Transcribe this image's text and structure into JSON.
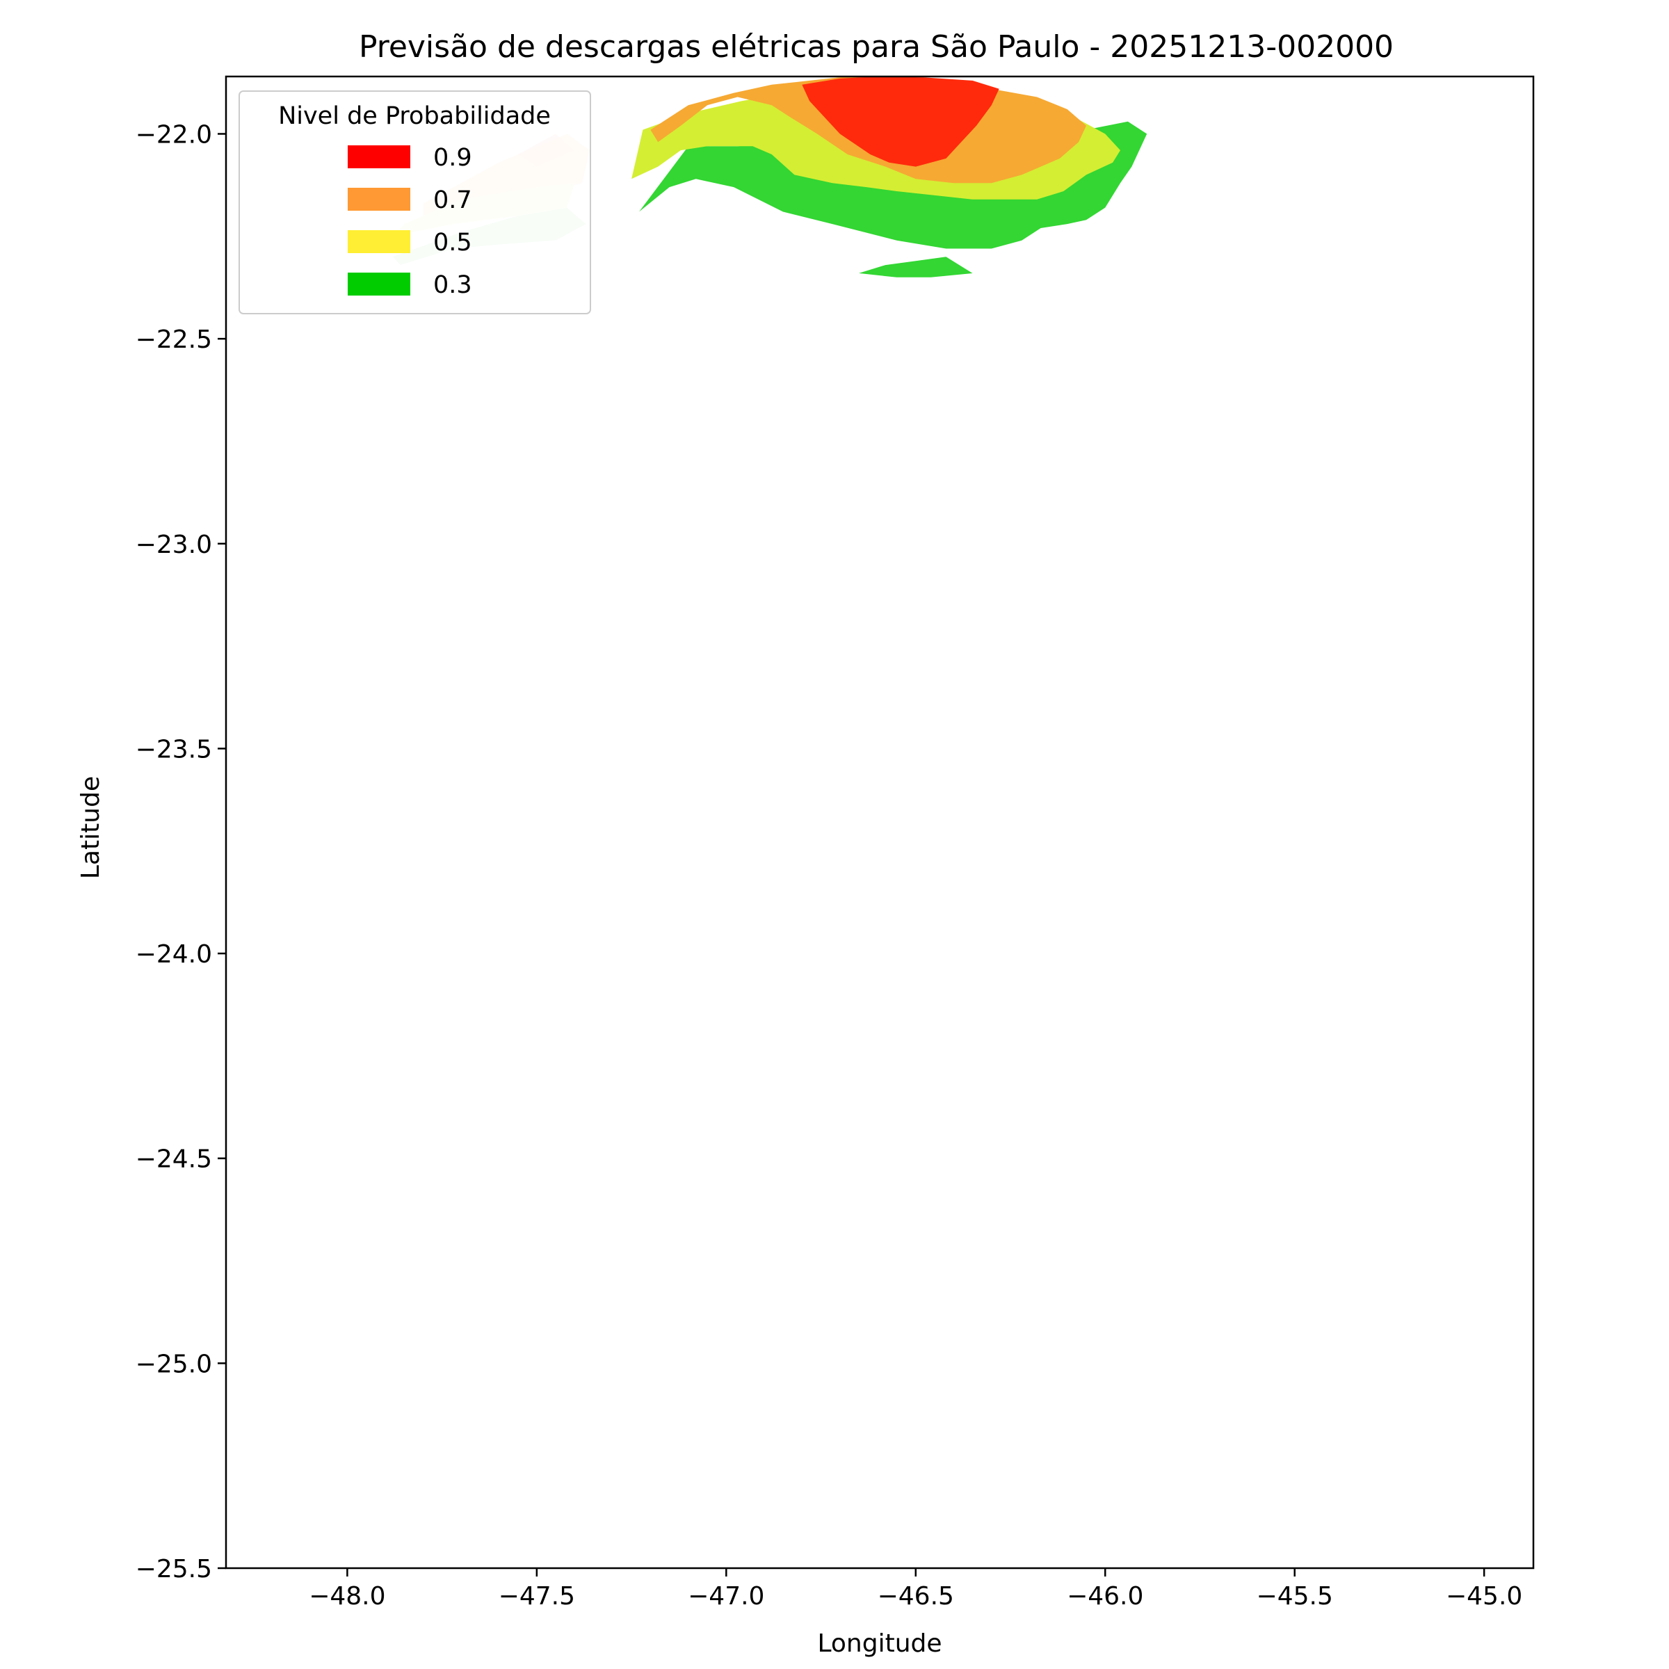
{
  "chart_data": {
    "type": "filled-contour",
    "title": "Previsão de descargas elétricas para São Paulo - 20251213-002000",
    "xlabel": "Longitude",
    "ylabel": "Latitude",
    "xlim": [
      -48.32,
      -44.87
    ],
    "ylim": [
      -25.5,
      -21.86
    ],
    "x_ticks": [
      -48.0,
      -47.5,
      -47.0,
      -46.5,
      -46.0,
      -45.5,
      -45.0
    ],
    "x_tick_labels": [
      "−48.0",
      "−47.5",
      "−47.0",
      "−46.5",
      "−46.0",
      "−45.5",
      "−45.0"
    ],
    "y_ticks": [
      -22.0,
      -22.5,
      -23.0,
      -23.5,
      -24.0,
      -24.5,
      -25.0,
      -25.5
    ],
    "y_tick_labels": [
      "−22.0",
      "−22.5",
      "−23.0",
      "−23.5",
      "−24.0",
      "−24.5",
      "−25.0",
      "−25.5"
    ],
    "grid": false,
    "legend": {
      "title": "Nivel de Probabilidade",
      "placement": "top-left",
      "entries": [
        {
          "label": "0.9",
          "color": "#ff0000"
        },
        {
          "label": "0.7",
          "color": "#ff9933"
        },
        {
          "label": "0.5",
          "color": "#ffee33"
        },
        {
          "label": "0.3",
          "color": "#00cc00"
        }
      ]
    },
    "series": [
      {
        "level": "0.3",
        "color": "#33d633",
        "lon": [
          -47.1,
          -46.97,
          -46.81,
          -46.6,
          -46.4,
          -46.2,
          -46.05,
          -45.94,
          -45.89,
          -45.93,
          -45.96,
          -46.0,
          -46.05,
          -46.1,
          -46.17,
          -46.22,
          -46.3,
          -46.42,
          -46.55,
          -46.72,
          -46.85,
          -46.98,
          -47.08,
          -47.15,
          -47.23
        ],
        "lat": [
          -22.03,
          -22.03,
          -22.02,
          -22.02,
          -22.02,
          -22.01,
          -21.99,
          -21.97,
          -22.0,
          -22.08,
          -22.12,
          -22.18,
          -22.21,
          -22.22,
          -22.23,
          -22.26,
          -22.28,
          -22.28,
          -22.26,
          -22.22,
          -22.19,
          -22.13,
          -22.11,
          -22.13,
          -22.19
        ]
      },
      {
        "level": "0.3",
        "color": "#33d633",
        "lon": [
          -46.58,
          -46.5,
          -46.42,
          -46.35,
          -46.46,
          -46.55,
          -46.65
        ],
        "lat": [
          -22.32,
          -22.31,
          -22.3,
          -22.34,
          -22.35,
          -22.35,
          -22.34
        ]
      },
      {
        "level": "0.5",
        "color": "#d4ee33",
        "lon": [
          -47.22,
          -47.1,
          -46.96,
          -46.84,
          -46.7,
          -46.58,
          -46.41,
          -46.2,
          -46.08,
          -46.0,
          -45.96,
          -45.98,
          -46.05,
          -46.11,
          -46.18,
          -46.26,
          -46.35,
          -46.45,
          -46.55,
          -46.63,
          -46.72,
          -46.82,
          -46.88,
          -46.93,
          -46.98,
          -47.05,
          -47.12,
          -47.18,
          -47.25
        ],
        "lat": [
          -21.99,
          -21.95,
          -21.92,
          -21.9,
          -21.89,
          -21.89,
          -21.9,
          -21.92,
          -21.96,
          -22.0,
          -22.04,
          -22.07,
          -22.1,
          -22.14,
          -22.16,
          -22.16,
          -22.16,
          -22.15,
          -22.14,
          -22.13,
          -22.12,
          -22.1,
          -22.05,
          -22.03,
          -22.03,
          -22.03,
          -22.04,
          -22.08,
          -22.11
        ]
      },
      {
        "level": "0.7",
        "color": "#f6a933",
        "lon": [
          -47.2,
          -47.1,
          -46.98,
          -46.88,
          -46.78,
          -46.68,
          -46.6,
          -46.46,
          -46.3,
          -46.18,
          -46.1,
          -46.05,
          -46.07,
          -46.12,
          -46.17,
          -46.22,
          -46.3,
          -46.4,
          -46.5,
          -46.58,
          -46.68,
          -46.76,
          -46.83,
          -46.88,
          -46.97,
          -47.05,
          -47.12,
          -47.18
        ],
        "lat": [
          -21.99,
          -21.93,
          -21.9,
          -21.88,
          -21.87,
          -21.86,
          -21.86,
          -21.87,
          -21.89,
          -21.91,
          -21.94,
          -21.98,
          -22.02,
          -22.06,
          -22.08,
          -22.1,
          -22.12,
          -22.12,
          -22.11,
          -22.08,
          -22.05,
          -22.0,
          -21.96,
          -21.93,
          -21.91,
          -21.93,
          -21.98,
          -22.02
        ]
      },
      {
        "level": "0.9",
        "color": "#ff2a0c",
        "lon": [
          -46.8,
          -46.7,
          -46.6,
          -46.48,
          -46.35,
          -46.28,
          -46.3,
          -46.34,
          -46.38,
          -46.42,
          -46.5,
          -46.57,
          -46.62,
          -46.7,
          -46.78
        ],
        "lat": [
          -21.88,
          -21.865,
          -21.86,
          -21.862,
          -21.87,
          -21.89,
          -21.93,
          -21.98,
          -22.02,
          -22.06,
          -22.08,
          -22.07,
          -22.05,
          -22.0,
          -21.92
        ]
      },
      {
        "level": "0.9",
        "color": "#f6b3b3",
        "opacity": 0.35,
        "lon": [
          -47.55,
          -47.45,
          -47.4,
          -47.5
        ],
        "lat": [
          -22.05,
          -22.0,
          -22.04,
          -22.08
        ]
      },
      {
        "level": "0.7",
        "color": "#fde2c5",
        "opacity": 0.7,
        "lon": [
          -47.8,
          -47.6,
          -47.42,
          -47.36,
          -47.38,
          -47.5,
          -47.65,
          -47.8
        ],
        "lat": [
          -22.17,
          -22.07,
          -22.0,
          -22.04,
          -22.12,
          -22.15,
          -22.17,
          -22.2
        ]
      },
      {
        "level": "0.5",
        "color": "#f8f8d6",
        "opacity": 0.85,
        "lon": [
          -47.85,
          -47.7,
          -47.5,
          -47.4,
          -47.42,
          -47.55,
          -47.72,
          -47.88
        ],
        "lat": [
          -22.22,
          -22.16,
          -22.13,
          -22.12,
          -22.18,
          -22.2,
          -22.22,
          -22.25
        ]
      },
      {
        "level": "0.3",
        "color": "#d4f2d4",
        "opacity": 0.9,
        "lon": [
          -47.88,
          -47.7,
          -47.55,
          -47.42,
          -47.37,
          -47.45,
          -47.6,
          -47.72,
          -47.86
        ],
        "lat": [
          -22.3,
          -22.24,
          -22.2,
          -22.18,
          -22.22,
          -22.26,
          -22.27,
          -22.28,
          -22.32
        ]
      }
    ]
  }
}
